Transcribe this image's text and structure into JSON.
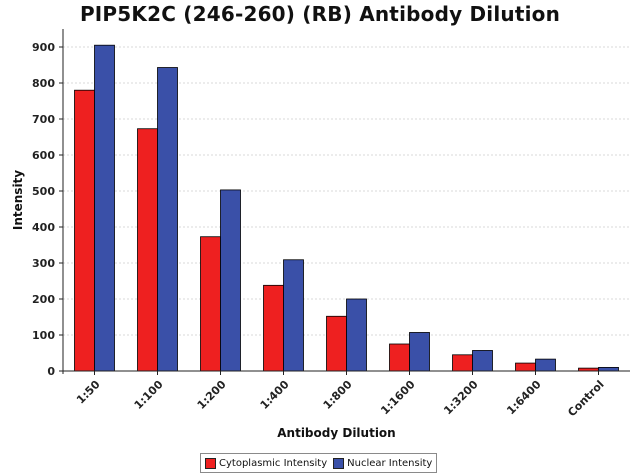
{
  "chart_data": {
    "type": "bar",
    "title": "PIP5K2C (246-260) (RB) Antibody Dilution",
    "xlabel": "Antibody Dilution",
    "ylabel": "Intensity",
    "categories": [
      "1:50",
      "1:100",
      "1:200",
      "1:400",
      "1:800",
      "1:1600",
      "1:3200",
      "1:6400",
      "Control"
    ],
    "series": [
      {
        "name": "Cytoplasmic Intensity",
        "color": "#ee2020",
        "values": [
          780,
          673,
          373,
          238,
          152,
          75,
          45,
          22,
          8
        ]
      },
      {
        "name": "Nuclear Intensity",
        "color": "#3a50a8",
        "values": [
          905,
          843,
          503,
          309,
          200,
          107,
          57,
          33,
          10
        ]
      }
    ],
    "ylim": [
      0,
      950
    ],
    "yticks": [
      0,
      100,
      200,
      300,
      400,
      500,
      600,
      700,
      800,
      900
    ],
    "grid": true,
    "legend_position": "bottom"
  }
}
